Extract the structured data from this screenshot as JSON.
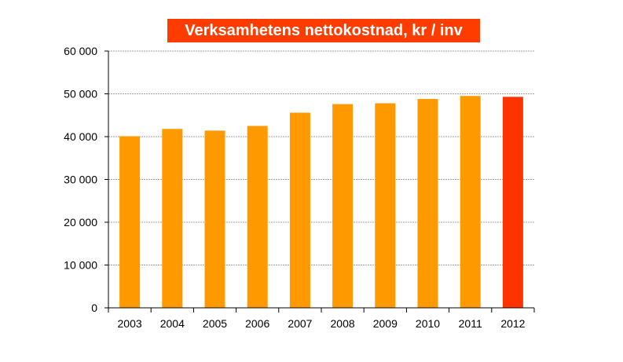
{
  "chart_data": {
    "type": "bar",
    "title": "Verksamhetens nettokostnad, kr / inv",
    "categories": [
      "2003",
      "2004",
      "2005",
      "2006",
      "2007",
      "2008",
      "2009",
      "2010",
      "2011",
      "2012"
    ],
    "values": [
      40100,
      41800,
      41400,
      42500,
      45600,
      47600,
      47800,
      48800,
      49500,
      49300
    ],
    "ylim": [
      0,
      60000
    ],
    "yticks": [
      0,
      10000,
      20000,
      30000,
      40000,
      50000,
      60000
    ],
    "ytick_labels": [
      "0",
      "10 000",
      "20 000",
      "30 000",
      "40 000",
      "50 000",
      "60 000"
    ],
    "grid": true,
    "colors": {
      "bar": "#ff9900",
      "highlight_bar": "#ff3300",
      "title_background": "#ff3c00",
      "title_text": "#ffffff",
      "gridline": "#a0a0a0"
    },
    "highlight_category": "2012"
  }
}
